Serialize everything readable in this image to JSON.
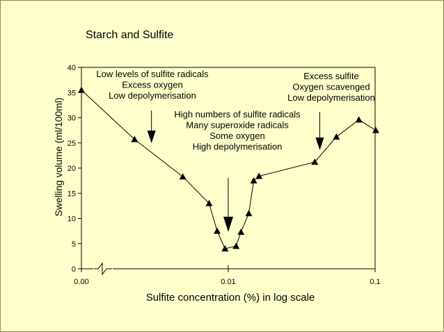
{
  "chart_data": {
    "type": "scatter",
    "title": "Starch and Sulfite",
    "xlabel": "Sulfite concentration (%) in log scale",
    "ylabel": "Swelling volume (ml/100ml)",
    "x_scale": "log",
    "x_ticks": [
      "0.00",
      "0.01",
      "0.1"
    ],
    "y_ticks": [
      "0",
      "5",
      "10",
      "15",
      "20",
      "25",
      "30",
      "35",
      "40"
    ],
    "ylim": [
      0,
      40
    ],
    "axis_break": true,
    "marker": "triangle",
    "points": [
      {
        "x": 0.001,
        "y": 35.5
      },
      {
        "x": 0.0023,
        "y": 25.7
      },
      {
        "x": 0.0049,
        "y": 18.3
      },
      {
        "x": 0.0074,
        "y": 13.0
      },
      {
        "x": 0.0084,
        "y": 7.5
      },
      {
        "x": 0.0095,
        "y": 4.0
      },
      {
        "x": 0.0113,
        "y": 4.5
      },
      {
        "x": 0.0122,
        "y": 7.3
      },
      {
        "x": 0.0138,
        "y": 11.0
      },
      {
        "x": 0.0149,
        "y": 17.5
      },
      {
        "x": 0.0162,
        "y": 18.4
      },
      {
        "x": 0.0388,
        "y": 21.2
      },
      {
        "x": 0.0545,
        "y": 26.2
      },
      {
        "x": 0.0775,
        "y": 29.6
      },
      {
        "x": 0.101,
        "y": 27.5
      }
    ],
    "annotations": [
      {
        "lines": [
          "Low levels of sulfite radicals",
          "Excess oxygen",
          "Low depolymerisation"
        ],
        "anchor": 0.003
      },
      {
        "lines": [
          "High numbers of sulfite radicals",
          "Many superoxide radicals",
          "Some oxygen",
          "High depolymerisation"
        ],
        "anchor": 0.01
      },
      {
        "lines": [
          "Excess sulfite",
          "Oxygen scavenged",
          "Low depolymerisation"
        ],
        "anchor": 0.042
      }
    ]
  }
}
